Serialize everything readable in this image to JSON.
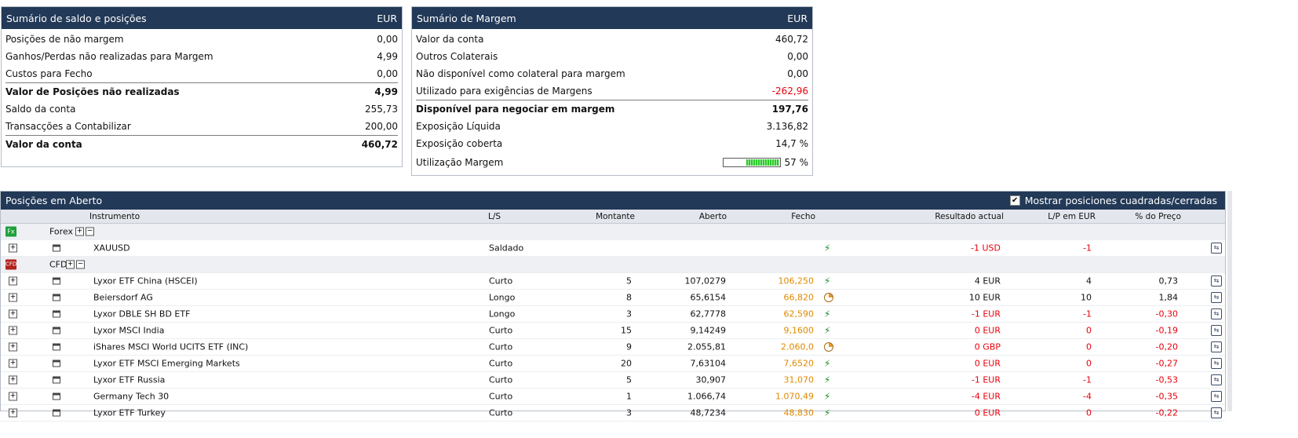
{
  "balance_summary": {
    "title": "Sumário de saldo e posições",
    "currency": "EUR",
    "rows": [
      {
        "label": "Posições de não margem",
        "value": "0,00"
      },
      {
        "label": "Ganhos/Perdas não realizadas para Margem",
        "value": "4,99"
      },
      {
        "label": "Custos para Fecho",
        "value": "0,00"
      },
      {
        "label": "Valor de Posições não realizadas",
        "value": "4,99"
      },
      {
        "label": "Saldo da conta",
        "value": "255,73"
      },
      {
        "label": "Transacções a Contabilizar",
        "value": "200,00"
      },
      {
        "label": "Valor da conta",
        "value": "460,72"
      }
    ]
  },
  "margin_summary": {
    "title": "Sumário de Margem",
    "currency": "EUR",
    "rows": [
      {
        "label": "Valor da conta",
        "value": "460,72"
      },
      {
        "label": "Outros Colaterais",
        "value": "0,00"
      },
      {
        "label": "Não disponível como colateral para margem",
        "value": "0,00"
      },
      {
        "label": "Utilizado para exigências de Margens",
        "value": "-262,96"
      },
      {
        "label": "Disponível para negociar em margem",
        "value": "197,76"
      },
      {
        "label": "Exposição Líquida",
        "value": "3.136,82"
      },
      {
        "label": "Exposição coberta",
        "value": "14,7 %"
      },
      {
        "label": "Utilização Margem",
        "value": "57 %"
      }
    ],
    "margin_utilization_fraction": 0.57
  },
  "positions": {
    "title": "Posições em Aberto",
    "show_closed_label": "Mostrar posiciones cuadradas/cerradas",
    "show_closed_checked": "✔",
    "columns": {
      "instrument": "Instrumento",
      "side": "L/S",
      "amount": "Montante",
      "open": "Aberto",
      "close": "Fecho",
      "result": "Resultado actual",
      "pl_eur": "L/P em EUR",
      "pct_price": "% do Preço"
    },
    "groups": {
      "forex": {
        "badge": "Fx",
        "label": "Forex"
      },
      "cfd": {
        "badge": "CFD",
        "label": "CFD"
      }
    },
    "forex_rows": [
      {
        "instrument": "XAUUSD",
        "side": "Saldado",
        "amount": "",
        "open": "",
        "close": "",
        "status_icon": "bolt-icon",
        "result": "-1 USD",
        "pl": "-1",
        "pct": ""
      }
    ],
    "cfd_rows": [
      {
        "instrument": "Lyxor ETF China (HSCEI)",
        "side": "Curto",
        "amount": "5",
        "open": "107,0279",
        "close": "106,250",
        "status_icon": "bolt-icon",
        "result": "4 EUR",
        "pl": "4",
        "pct": "0,73"
      },
      {
        "instrument": "Beiersdorf AG",
        "side": "Longo",
        "amount": "8",
        "open": "65,6154",
        "close": "66,820",
        "status_icon": "clock-icon",
        "result": "10 EUR",
        "pl": "10",
        "pct": "1,84"
      },
      {
        "instrument": "Lyxor DBLE SH BD ETF",
        "side": "Longo",
        "amount": "3",
        "open": "62,7778",
        "close": "62,590",
        "status_icon": "bolt-icon",
        "result": "-1 EUR",
        "pl": "-1",
        "pct": "-0,30"
      },
      {
        "instrument": "Lyxor MSCI India",
        "side": "Curto",
        "amount": "15",
        "open": "9,14249",
        "close": "9,1600",
        "status_icon": "bolt-icon",
        "result": "0 EUR",
        "pl": "0",
        "pct": "-0,19"
      },
      {
        "instrument": "iShares MSCI World UCITS ETF (INC)",
        "side": "Curto",
        "amount": "9",
        "open": "2.055,81",
        "close": "2.060,0",
        "status_icon": "clock-icon",
        "result": "0 GBP",
        "pl": "0",
        "pct": "-0,20"
      },
      {
        "instrument": "Lyxor ETF MSCI Emerging Markets",
        "side": "Curto",
        "amount": "20",
        "open": "7,63104",
        "close": "7,6520",
        "status_icon": "bolt-icon",
        "result": "0 EUR",
        "pl": "0",
        "pct": "-0,27"
      },
      {
        "instrument": "Lyxor ETF Russia",
        "side": "Curto",
        "amount": "5",
        "open": "30,907",
        "close": "31,070",
        "status_icon": "bolt-icon",
        "result": "-1 EUR",
        "pl": "-1",
        "pct": "-0,53"
      },
      {
        "instrument": "Germany Tech 30",
        "side": "Curto",
        "amount": "1",
        "open": "1.066,74",
        "close": "1.070,49",
        "status_icon": "bolt-icon",
        "result": "-4 EUR",
        "pl": "-4",
        "pct": "-0,35"
      },
      {
        "instrument": "Lyxor ETF Turkey",
        "side": "Curto",
        "amount": "3",
        "open": "48,7234",
        "close": "48,830",
        "status_icon": "bolt-icon",
        "result": "0 EUR",
        "pl": "0",
        "pct": "-0,22"
      }
    ]
  },
  "colors": {
    "header_bg": "#223957",
    "negative": "#e8000b",
    "close_price": "#e08a00",
    "positive": "#000000"
  }
}
